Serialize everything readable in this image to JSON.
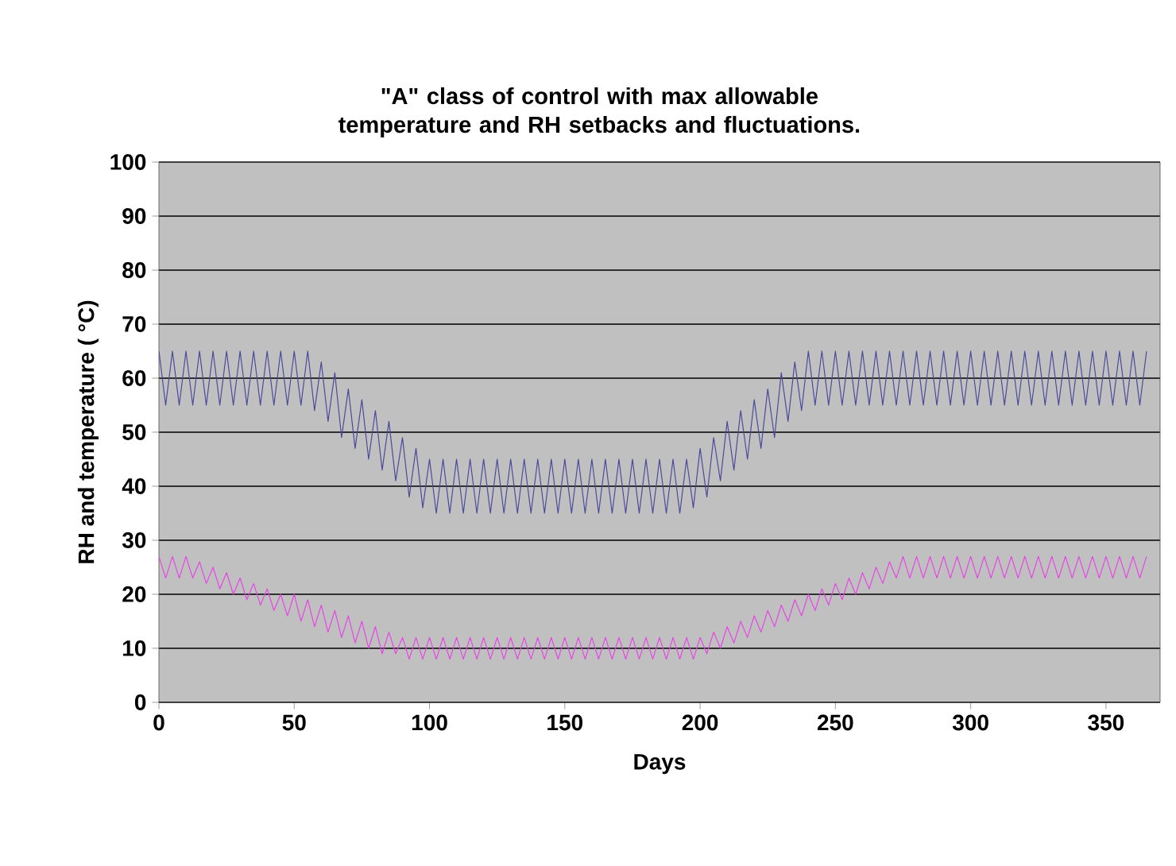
{
  "chart_data": {
    "type": "line",
    "title": "\"A\" class of control with max allowable temperature and RH setbacks and fluctuations.",
    "xlabel": "Days",
    "ylabel": "RH and temperature ( °C)",
    "x": [
      0,
      2.5,
      5,
      7.5,
      10,
      12.5,
      15,
      17.5,
      20,
      22.5,
      25,
      27.5,
      30,
      32.5,
      35,
      37.5,
      40,
      42.5,
      45,
      47.5,
      50,
      52.5,
      55,
      57.5,
      60,
      62.5,
      65,
      67.5,
      70,
      72.5,
      75,
      77.5,
      80,
      82.5,
      85,
      87.5,
      90,
      92.5,
      95,
      97.5,
      100,
      102.5,
      105,
      107.5,
      110,
      112.5,
      115,
      117.5,
      120,
      122.5,
      125,
      127.5,
      130,
      132.5,
      135,
      137.5,
      140,
      142.5,
      145,
      147.5,
      150,
      152.5,
      155,
      157.5,
      160,
      162.5,
      165,
      167.5,
      170,
      172.5,
      175,
      177.5,
      180,
      182.5,
      185,
      187.5,
      190,
      192.5,
      195,
      197.5,
      200,
      202.5,
      205,
      207.5,
      210,
      212.5,
      215,
      217.5,
      220,
      222.5,
      225,
      227.5,
      230,
      232.5,
      235,
      237.5,
      240,
      242.5,
      245,
      247.5,
      250,
      252.5,
      255,
      257.5,
      260,
      262.5,
      265,
      267.5,
      270,
      272.5,
      275,
      277.5,
      280,
      282.5,
      285,
      287.5,
      290,
      292.5,
      295,
      297.5,
      300,
      302.5,
      305,
      307.5,
      310,
      312.5,
      315,
      317.5,
      320,
      322.5,
      325,
      327.5,
      330,
      332.5,
      335,
      337.5,
      340,
      342.5,
      345,
      347.5,
      350,
      352.5,
      355,
      357.5,
      360,
      362.5,
      365
    ],
    "series": [
      {
        "color": "#4a4a9c",
        "values": [
          65,
          55,
          65,
          55,
          65,
          55,
          65,
          55,
          65,
          55,
          65,
          55,
          65,
          55,
          65,
          55,
          65,
          55,
          65,
          55,
          65,
          55,
          65,
          54,
          63,
          52,
          61,
          49,
          58,
          47,
          56,
          45,
          54,
          43,
          52,
          41,
          49,
          38,
          47,
          36,
          45,
          35,
          45,
          35,
          45,
          35,
          45,
          35,
          45,
          35,
          45,
          35,
          45,
          35,
          45,
          35,
          45,
          35,
          45,
          35,
          45,
          35,
          45,
          35,
          45,
          35,
          45,
          35,
          45,
          35,
          45,
          35,
          45,
          35,
          45,
          35,
          45,
          35,
          45,
          36,
          47,
          38,
          49,
          41,
          52,
          43,
          54,
          45,
          56,
          47,
          58,
          49,
          61,
          52,
          63,
          54,
          65,
          55,
          65,
          55,
          65,
          55,
          65,
          55,
          65,
          55,
          65,
          55,
          65,
          55,
          65,
          55,
          65,
          55,
          65,
          55,
          65,
          55,
          65,
          55,
          65,
          55,
          65,
          55,
          65,
          55,
          65,
          55,
          65,
          55,
          65,
          55,
          65,
          55,
          65,
          55,
          65,
          55,
          65,
          55,
          65,
          55,
          65,
          55,
          65,
          55,
          65
        ]
      },
      {
        "color": "#e645e6",
        "values": [
          27,
          23,
          27,
          23,
          27,
          23,
          26,
          22,
          25,
          21,
          24,
          20,
          23,
          19,
          22,
          18,
          21,
          17,
          20,
          16,
          20,
          15,
          19,
          14,
          18,
          13,
          17,
          12,
          16,
          11,
          15,
          10,
          14,
          9,
          13,
          9,
          12,
          8,
          12,
          8,
          12,
          8,
          12,
          8,
          12,
          8,
          12,
          8,
          12,
          8,
          12,
          8,
          12,
          8,
          12,
          8,
          12,
          8,
          12,
          8,
          12,
          8,
          12,
          8,
          12,
          8,
          12,
          8,
          12,
          8,
          12,
          8,
          12,
          8,
          12,
          8,
          12,
          8,
          12,
          8,
          12,
          9,
          13,
          10,
          14,
          11,
          15,
          12,
          16,
          13,
          17,
          14,
          18,
          15,
          19,
          16,
          20,
          17,
          21,
          18,
          22,
          19,
          23,
          20,
          24,
          21,
          25,
          22,
          26,
          23,
          27,
          23,
          27,
          23,
          27,
          23,
          27,
          23,
          27,
          23,
          27,
          23,
          27,
          23,
          27,
          23,
          27,
          23,
          27,
          23,
          27,
          23,
          27,
          23,
          27,
          23,
          27,
          23,
          27,
          23,
          27,
          23,
          27,
          23,
          27,
          23,
          27
        ]
      }
    ],
    "xlim": [
      0,
      370
    ],
    "xticks": [
      0,
      50,
      100,
      150,
      200,
      250,
      300,
      350
    ],
    "ylim": [
      0,
      100
    ],
    "yticks": [
      0,
      10,
      20,
      30,
      40,
      50,
      60,
      70,
      80,
      90,
      100
    ],
    "grid": "y",
    "marker": "none",
    "line_style": "solid"
  }
}
